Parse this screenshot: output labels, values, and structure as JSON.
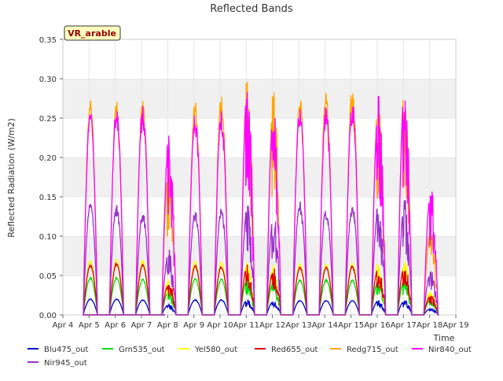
{
  "chart_data": {
    "type": "line",
    "title": "Reflected Bands",
    "xlabel": "Time",
    "ylabel": "Reflected Radiation (W/m2)",
    "badge": "VR_arable",
    "xlim": [
      "Apr 4",
      "Apr 19"
    ],
    "ylim": [
      0,
      0.35
    ],
    "x_ticks": [
      "Apr 4",
      "Apr 5",
      "Apr 6",
      "Apr 7",
      "Apr 8",
      "Apr 9",
      "Apr 10",
      "Apr 11",
      "Apr 12",
      "Apr 13",
      "Apr 14",
      "Apr 15",
      "Apr 16",
      "Apr 17",
      "Apr 18",
      "Apr 19"
    ],
    "y_ticks": [
      "0.00",
      "0.05",
      "0.10",
      "0.15",
      "0.20",
      "0.25",
      "0.30",
      "0.35"
    ],
    "y_tick_values": [
      0,
      0.05,
      0.1,
      0.15,
      0.2,
      0.25,
      0.3,
      0.35
    ],
    "grid": "horizontal bands",
    "legend_position": "bottom",
    "days": [
      "Apr 5",
      "Apr 6",
      "Apr 7",
      "Apr 8",
      "Apr 9",
      "Apr 10",
      "Apr 11",
      "Apr 12",
      "Apr 13",
      "Apr 14",
      "Apr 15",
      "Apr 16",
      "Apr 17",
      "Apr 18"
    ],
    "series": [
      {
        "name": "Blu475_out",
        "color": "#0000cc",
        "daily_peak": [
          0.02,
          0.02,
          0.019,
          0.013,
          0.019,
          0.019,
          0.019,
          0.017,
          0.018,
          0.018,
          0.018,
          0.018,
          0.018,
          0.008
        ]
      },
      {
        "name": "Grn535_out",
        "color": "#00dd00",
        "daily_peak": [
          0.047,
          0.047,
          0.045,
          0.03,
          0.046,
          0.045,
          0.046,
          0.042,
          0.044,
          0.044,
          0.044,
          0.044,
          0.045,
          0.02
        ]
      },
      {
        "name": "Yel580_out",
        "color": "#ffff00",
        "daily_peak": [
          0.068,
          0.07,
          0.068,
          0.045,
          0.067,
          0.066,
          0.067,
          0.062,
          0.064,
          0.064,
          0.065,
          0.065,
          0.066,
          0.03
        ]
      },
      {
        "name": "Red655_out",
        "color": "#dd0000",
        "daily_peak": [
          0.063,
          0.065,
          0.063,
          0.04,
          0.062,
          0.061,
          0.063,
          0.057,
          0.06,
          0.06,
          0.061,
          0.061,
          0.063,
          0.025
        ]
      },
      {
        "name": "Redg715_out",
        "color": "#ffa500",
        "daily_peak": [
          0.268,
          0.268,
          0.27,
          0.19,
          0.268,
          0.278,
          0.3,
          0.277,
          0.274,
          0.281,
          0.288,
          0.272,
          0.283,
          0.11
        ]
      },
      {
        "name": "Nir840_out",
        "color": "#ff00ff",
        "daily_peak": [
          0.256,
          0.262,
          0.262,
          0.222,
          0.253,
          0.257,
          0.29,
          0.262,
          0.264,
          0.262,
          0.267,
          0.268,
          0.291,
          0.16
        ]
      },
      {
        "name": "Nir945_out",
        "color": "#9933cc",
        "daily_peak": [
          0.141,
          0.139,
          0.13,
          0.08,
          0.131,
          0.133,
          0.135,
          0.127,
          0.142,
          0.135,
          0.139,
          0.139,
          0.142,
          0.055
        ]
      }
    ]
  }
}
